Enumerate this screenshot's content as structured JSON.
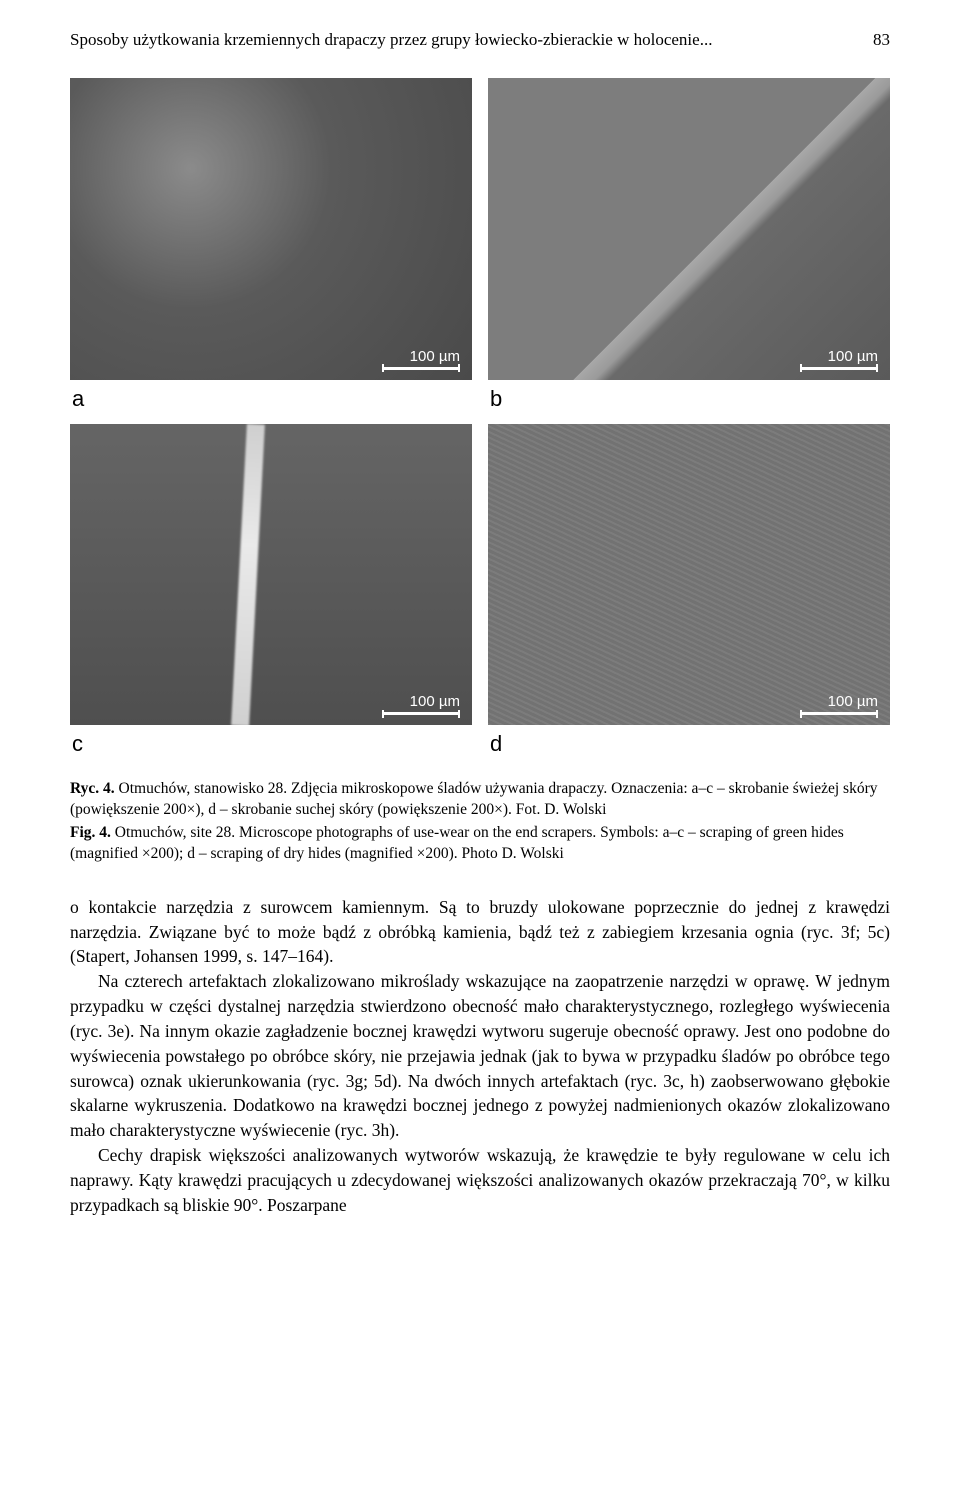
{
  "header": {
    "running_title": "Sposoby użytkowania krzemiennych drapaczy przez grupy łowiecko-zbierackie w holocenie...",
    "page_number": "83"
  },
  "figure": {
    "panels": [
      {
        "label": "a",
        "scale_text": "100 µm",
        "style": "rough"
      },
      {
        "label": "b",
        "scale_text": "100 µm",
        "style": "edge"
      },
      {
        "label": "c",
        "scale_text": "100 µm",
        "style": "crack"
      },
      {
        "label": "d",
        "scale_text": "100 µm",
        "style": "scratch"
      }
    ],
    "caption_pl_lead": "Ryc. 4.",
    "caption_pl_rest": " Otmuchów, stanowisko 28. Zdjęcia mikroskopowe śladów używania drapaczy. Oznaczenia: a–c – skrobanie świeżej skóry (powiększenie 200×), d – skrobanie suchej skóry (powiększenie 200×). Fot. D. Wolski",
    "caption_en_lead": "Fig. 4.",
    "caption_en_rest": " Otmuchów, site 28. Microscope photographs of use-wear on the end scrapers. Symbols: a–c – scraping of green hides (magnified ×200); d – scraping of dry hides (magnified ×200). Photo D. Wolski"
  },
  "body": {
    "p1": "o kontakcie narzędzia z surowcem kamiennym. Są to bruzdy ulokowane poprzecznie do jednej z krawędzi narzędzia. Związane być to może bądź z obróbką kamienia, bądź też z zabiegiem krzesania ognia (ryc. 3f; 5c) (Stapert, Johansen 1999, s. 147–164).",
    "p2": "Na czterech artefaktach zlokalizowano mikroślady wskazujące na zaopatrzenie narzędzi w oprawę. W jednym przypadku w części dystalnej narzędzia stwierdzono obecność mało charakterystycznego, rozległego wyświecenia (ryc. 3e). Na innym okazie zagładzenie bocznej krawędzi wytworu sugeruje obecność oprawy. Jest ono podobne do wyświecenia powstałego po obróbce skóry, nie przejawia jednak (jak to bywa w przypadku śladów po obróbce tego surowca) oznak ukierunkowania (ryc. 3g; 5d). Na dwóch innych artefaktach (ryc. 3c, h) zaobserwowano głębokie skalarne wykruszenia. Dodatkowo na krawędzi bocznej jednego z powyżej nadmienionych okazów zlokalizowano mało charakterystyczne wyświecenie (ryc. 3h).",
    "p3": "Cechy drapisk większości analizowanych wytworów wskazują, że krawędzie te były regulowane w celu ich naprawy. Kąty krawędzi pracujących u zdecydowanej większości analizowanych okazów przekraczają 70°, w kilku przypadkach są bliskie 90°. Poszarpane"
  },
  "colors": {
    "text": "#000000",
    "background": "#ffffff",
    "panel_gray": "#6a6a6a",
    "scale_color": "#ffffff"
  }
}
